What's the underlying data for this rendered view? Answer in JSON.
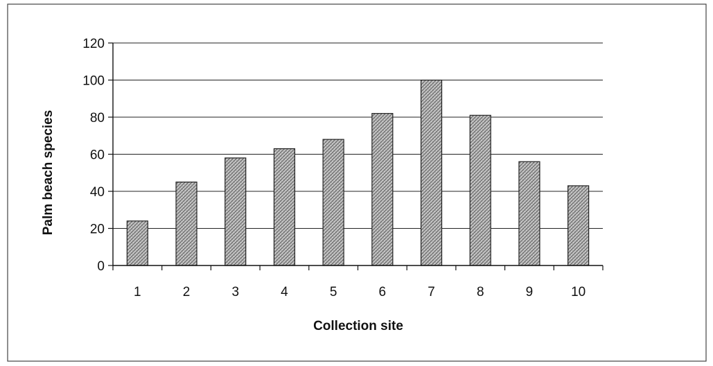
{
  "chart_data": {
    "type": "bar",
    "title": "",
    "xlabel": "Collection site",
    "ylabel": "Palm beach species",
    "categories": [
      "1",
      "2",
      "3",
      "4",
      "5",
      "6",
      "7",
      "8",
      "9",
      "10"
    ],
    "values": [
      24,
      45,
      58,
      63,
      68,
      82,
      100,
      81,
      56,
      43
    ],
    "ylim": [
      0,
      120
    ],
    "yticks": [
      0,
      20,
      40,
      60,
      80,
      100,
      120
    ],
    "ytick_labels": [
      "0",
      "20",
      "40",
      "60",
      "80",
      "100",
      "120"
    ],
    "grid": true,
    "legend": "none",
    "bar_fill": "crosshatch",
    "colors": {
      "bar_fill": "#c9c9c9",
      "bar_hatch": "#555555",
      "bar_outline": "#222222",
      "gridline": "#222222"
    }
  }
}
